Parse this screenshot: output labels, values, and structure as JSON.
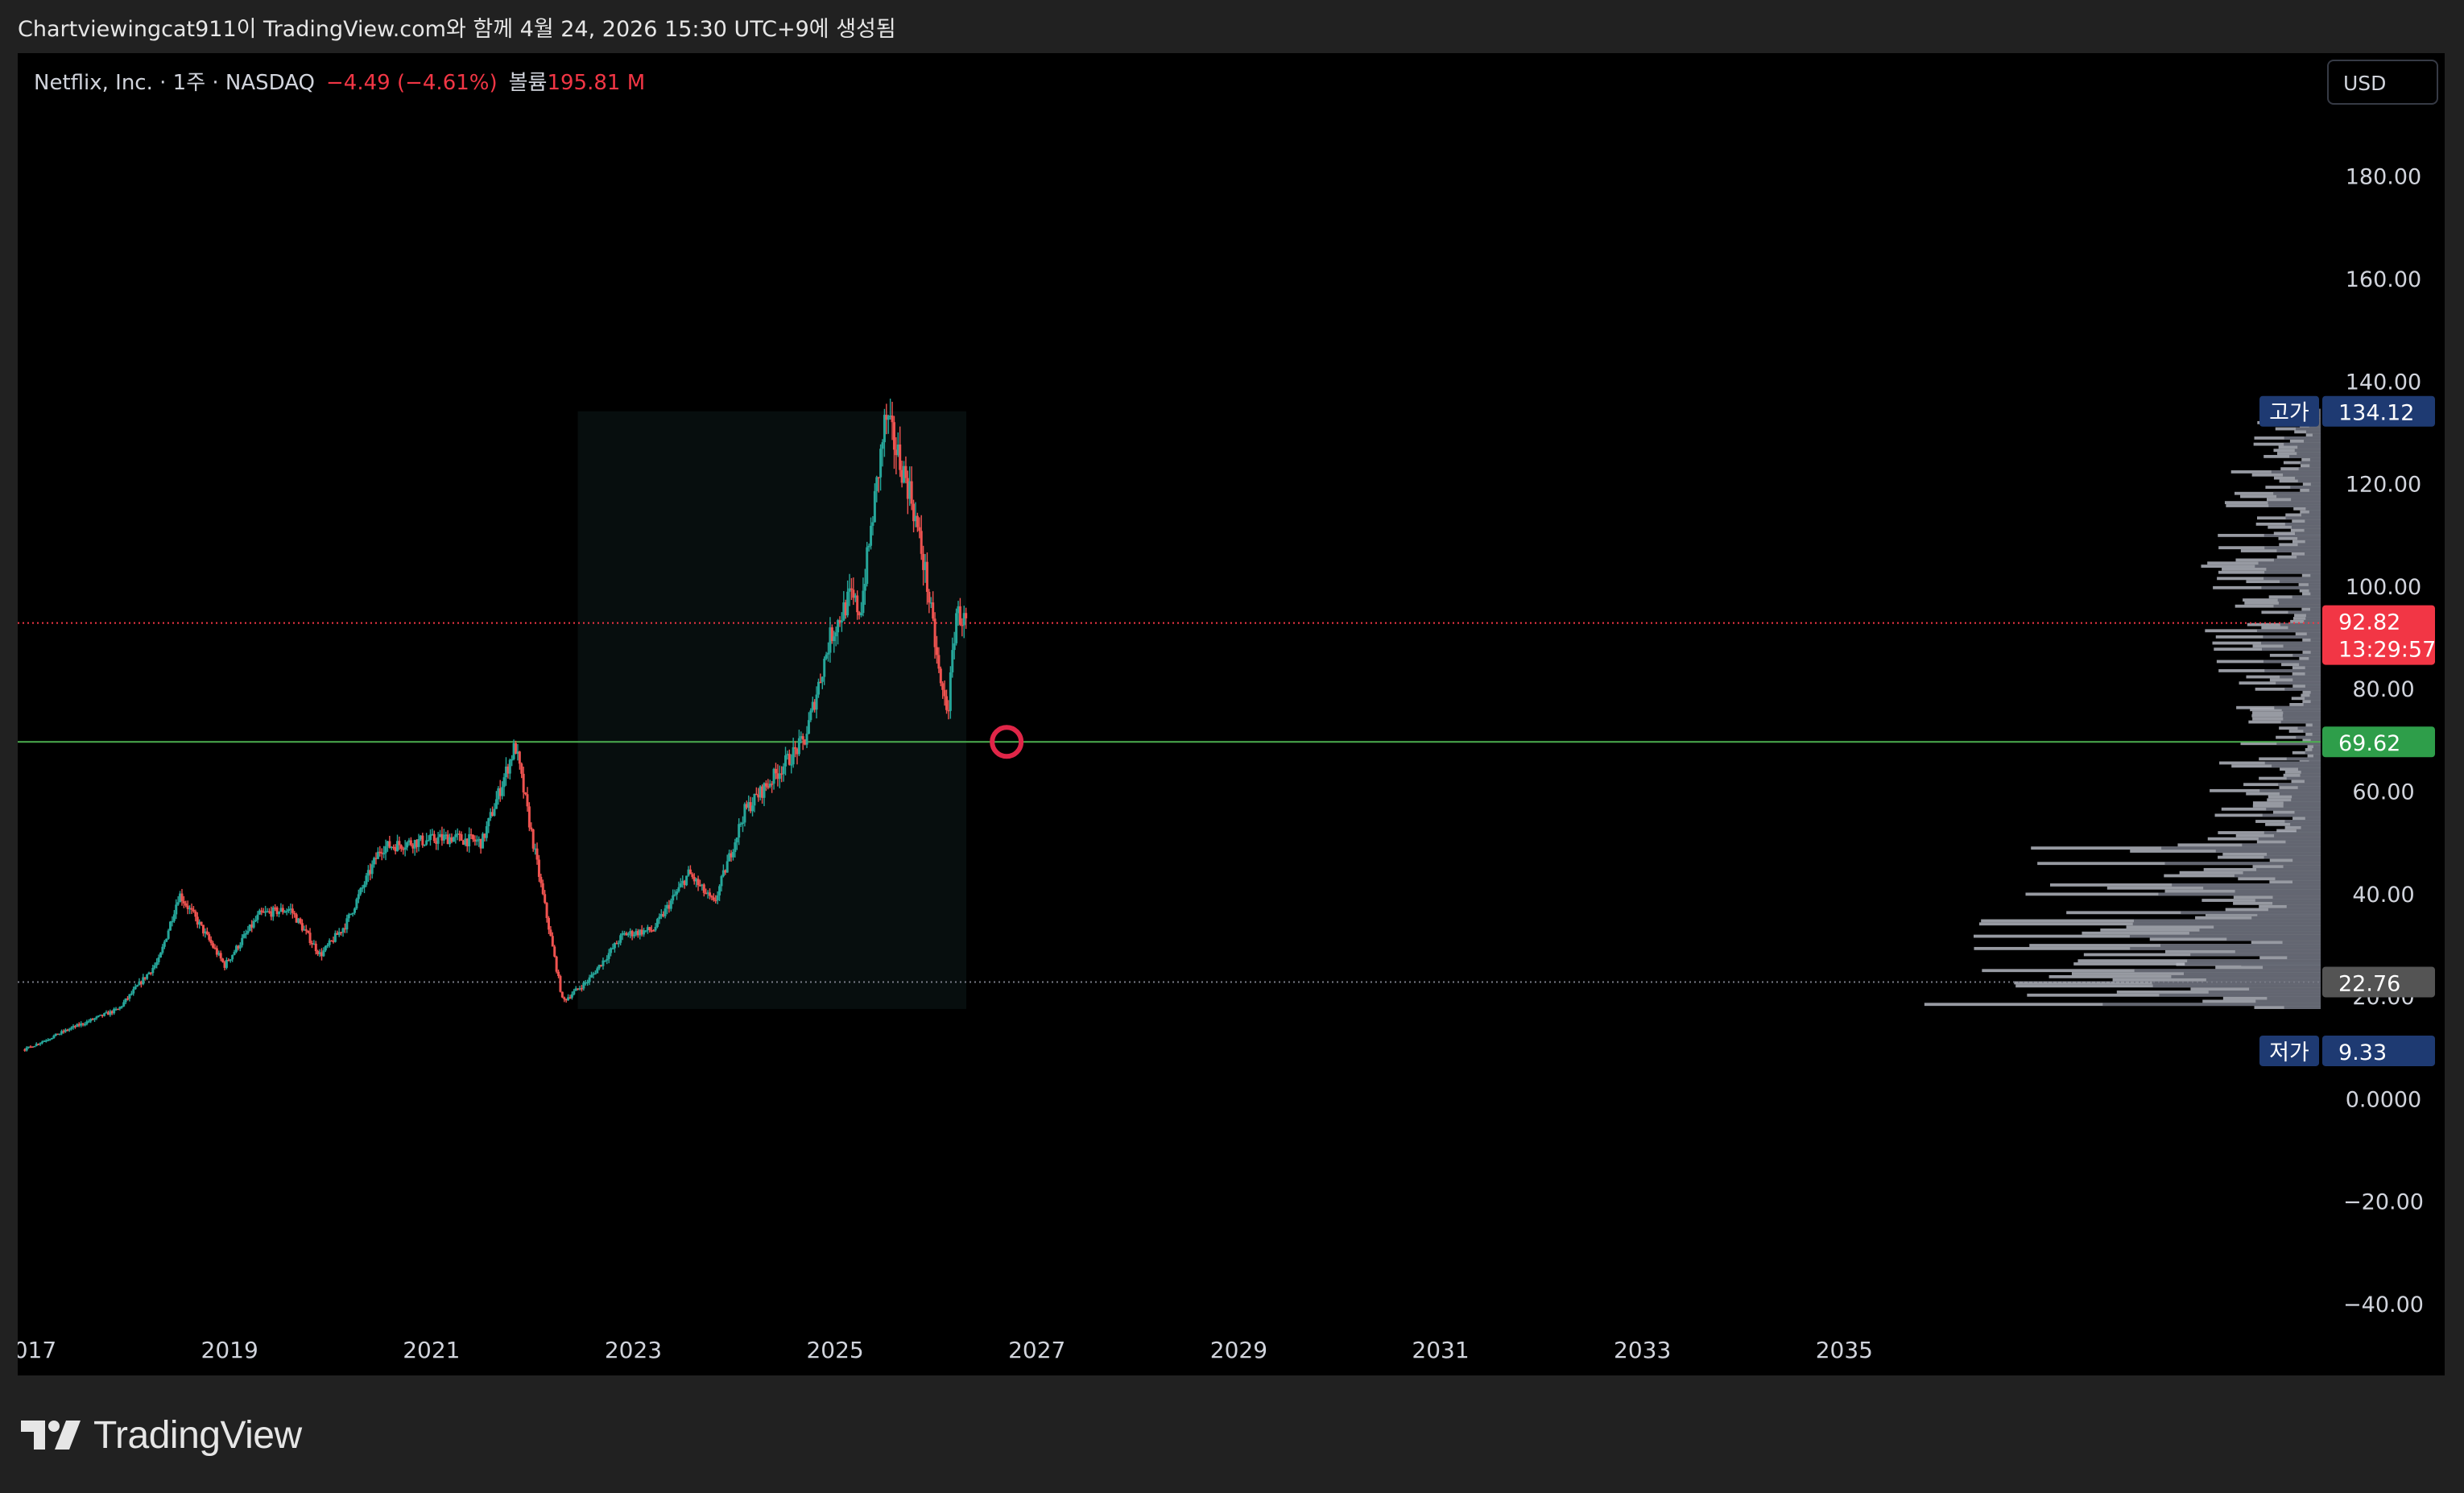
{
  "caption": "Chartviewingcat911이 TradingView.com와 함께 4월 24, 2026 15:30 UTC+9에 생성됨",
  "legend": {
    "symbol": "Netflix, Inc. · 1주 · NASDAQ",
    "change": "−4.49 (−4.61%)",
    "volume_label": "볼륨",
    "volume_value": "195.81 M"
  },
  "currency_button": "USD",
  "footer": {
    "brand": "TradingView",
    "logo_icon": "tradingview-logo-icon"
  },
  "chart_data": {
    "type": "candlestick",
    "symbol": "Netflix, Inc.",
    "interval": "1주",
    "exchange": "NASDAQ",
    "y_ticks": [
      180,
      160,
      140,
      120,
      100,
      80,
      60,
      40,
      20,
      0,
      -20,
      -40
    ],
    "y_tick_labels": [
      "180.00",
      "160.00",
      "140.00",
      "120.00",
      "100.00",
      "80.00",
      "60.00",
      "40.00",
      "20.00",
      "0.0000",
      "−20.00",
      "−40.00"
    ],
    "ylim": [
      -54,
      204
    ],
    "x_ticks": [
      "2017",
      "2019",
      "2021",
      "2023",
      "2025",
      "2027",
      "2029",
      "2031",
      "2033",
      "2035"
    ],
    "xlim_years": [
      2016.9,
      2040.95
    ],
    "series_keypoints": [
      {
        "t": 2016.97,
        "v": 9.6
      },
      {
        "t": 2017.4,
        "v": 13.5
      },
      {
        "t": 2017.9,
        "v": 17.5
      },
      {
        "t": 2018.3,
        "v": 27
      },
      {
        "t": 2018.5,
        "v": 40
      },
      {
        "t": 2018.7,
        "v": 34
      },
      {
        "t": 2018.95,
        "v": 26
      },
      {
        "t": 2019.3,
        "v": 36
      },
      {
        "t": 2019.6,
        "v": 37
      },
      {
        "t": 2019.9,
        "v": 28
      },
      {
        "t": 2020.15,
        "v": 34
      },
      {
        "t": 2020.5,
        "v": 49
      },
      {
        "t": 2020.8,
        "v": 50
      },
      {
        "t": 2021.2,
        "v": 51
      },
      {
        "t": 2021.5,
        "v": 50
      },
      {
        "t": 2021.83,
        "v": 69
      },
      {
        "t": 2022.1,
        "v": 40
      },
      {
        "t": 2022.3,
        "v": 19
      },
      {
        "t": 2022.55,
        "v": 23
      },
      {
        "t": 2022.9,
        "v": 32
      },
      {
        "t": 2023.2,
        "v": 33
      },
      {
        "t": 2023.55,
        "v": 44
      },
      {
        "t": 2023.8,
        "v": 38
      },
      {
        "t": 2024.1,
        "v": 56
      },
      {
        "t": 2024.4,
        "v": 63
      },
      {
        "t": 2024.7,
        "v": 70
      },
      {
        "t": 2024.95,
        "v": 90
      },
      {
        "t": 2025.15,
        "v": 98
      },
      {
        "t": 2025.25,
        "v": 95
      },
      {
        "t": 2025.5,
        "v": 133
      },
      {
        "t": 2025.75,
        "v": 118
      },
      {
        "t": 2025.9,
        "v": 102
      },
      {
        "t": 2026.05,
        "v": 80
      },
      {
        "t": 2026.12,
        "v": 76
      },
      {
        "t": 2026.2,
        "v": 95
      },
      {
        "t": 2026.3,
        "v": 92.8
      }
    ],
    "colors": {
      "up": "#26a69a",
      "down": "#ef5350"
    },
    "range_box": {
      "from_year": 2022.45,
      "to_year": 2026.3,
      "from_value": 17.5,
      "to_value": 134.12
    },
    "levels": [
      {
        "label": "고가",
        "value": 134.12,
        "value_label": "134.12",
        "color": "#1e3a72"
      },
      {
        "value": 92.82,
        "value_label": "92.82",
        "countdown": "13:29:57",
        "color": "#f23645",
        "line": "dotted-red"
      },
      {
        "value": 69.62,
        "value_label": "69.62",
        "color": "#2e9e4a",
        "line": "solid-green"
      },
      {
        "value": 22.76,
        "value_label": "22.76",
        "color": "#545454",
        "line": "dotted-gray"
      },
      {
        "label": "저가",
        "value": 9.33,
        "value_label": "9.33",
        "color": "#1e3a72"
      }
    ],
    "marker": {
      "type": "circle",
      "year": 2026.7,
      "value": 69.62,
      "color": "#e02648"
    },
    "volume_profile_buckets": [
      {
        "lo": 17.5,
        "hi": 26,
        "max_width": 0.55
      },
      {
        "lo": 26,
        "hi": 36,
        "max_width": 0.48
      },
      {
        "lo": 36,
        "hi": 52,
        "max_width": 0.4
      },
      {
        "lo": 52,
        "hi": 66,
        "max_width": 0.15
      },
      {
        "lo": 66,
        "hi": 76,
        "max_width": 0.1
      },
      {
        "lo": 76,
        "hi": 110,
        "max_width": 0.15
      },
      {
        "lo": 110,
        "hi": 134,
        "max_width": 0.12
      }
    ]
  }
}
